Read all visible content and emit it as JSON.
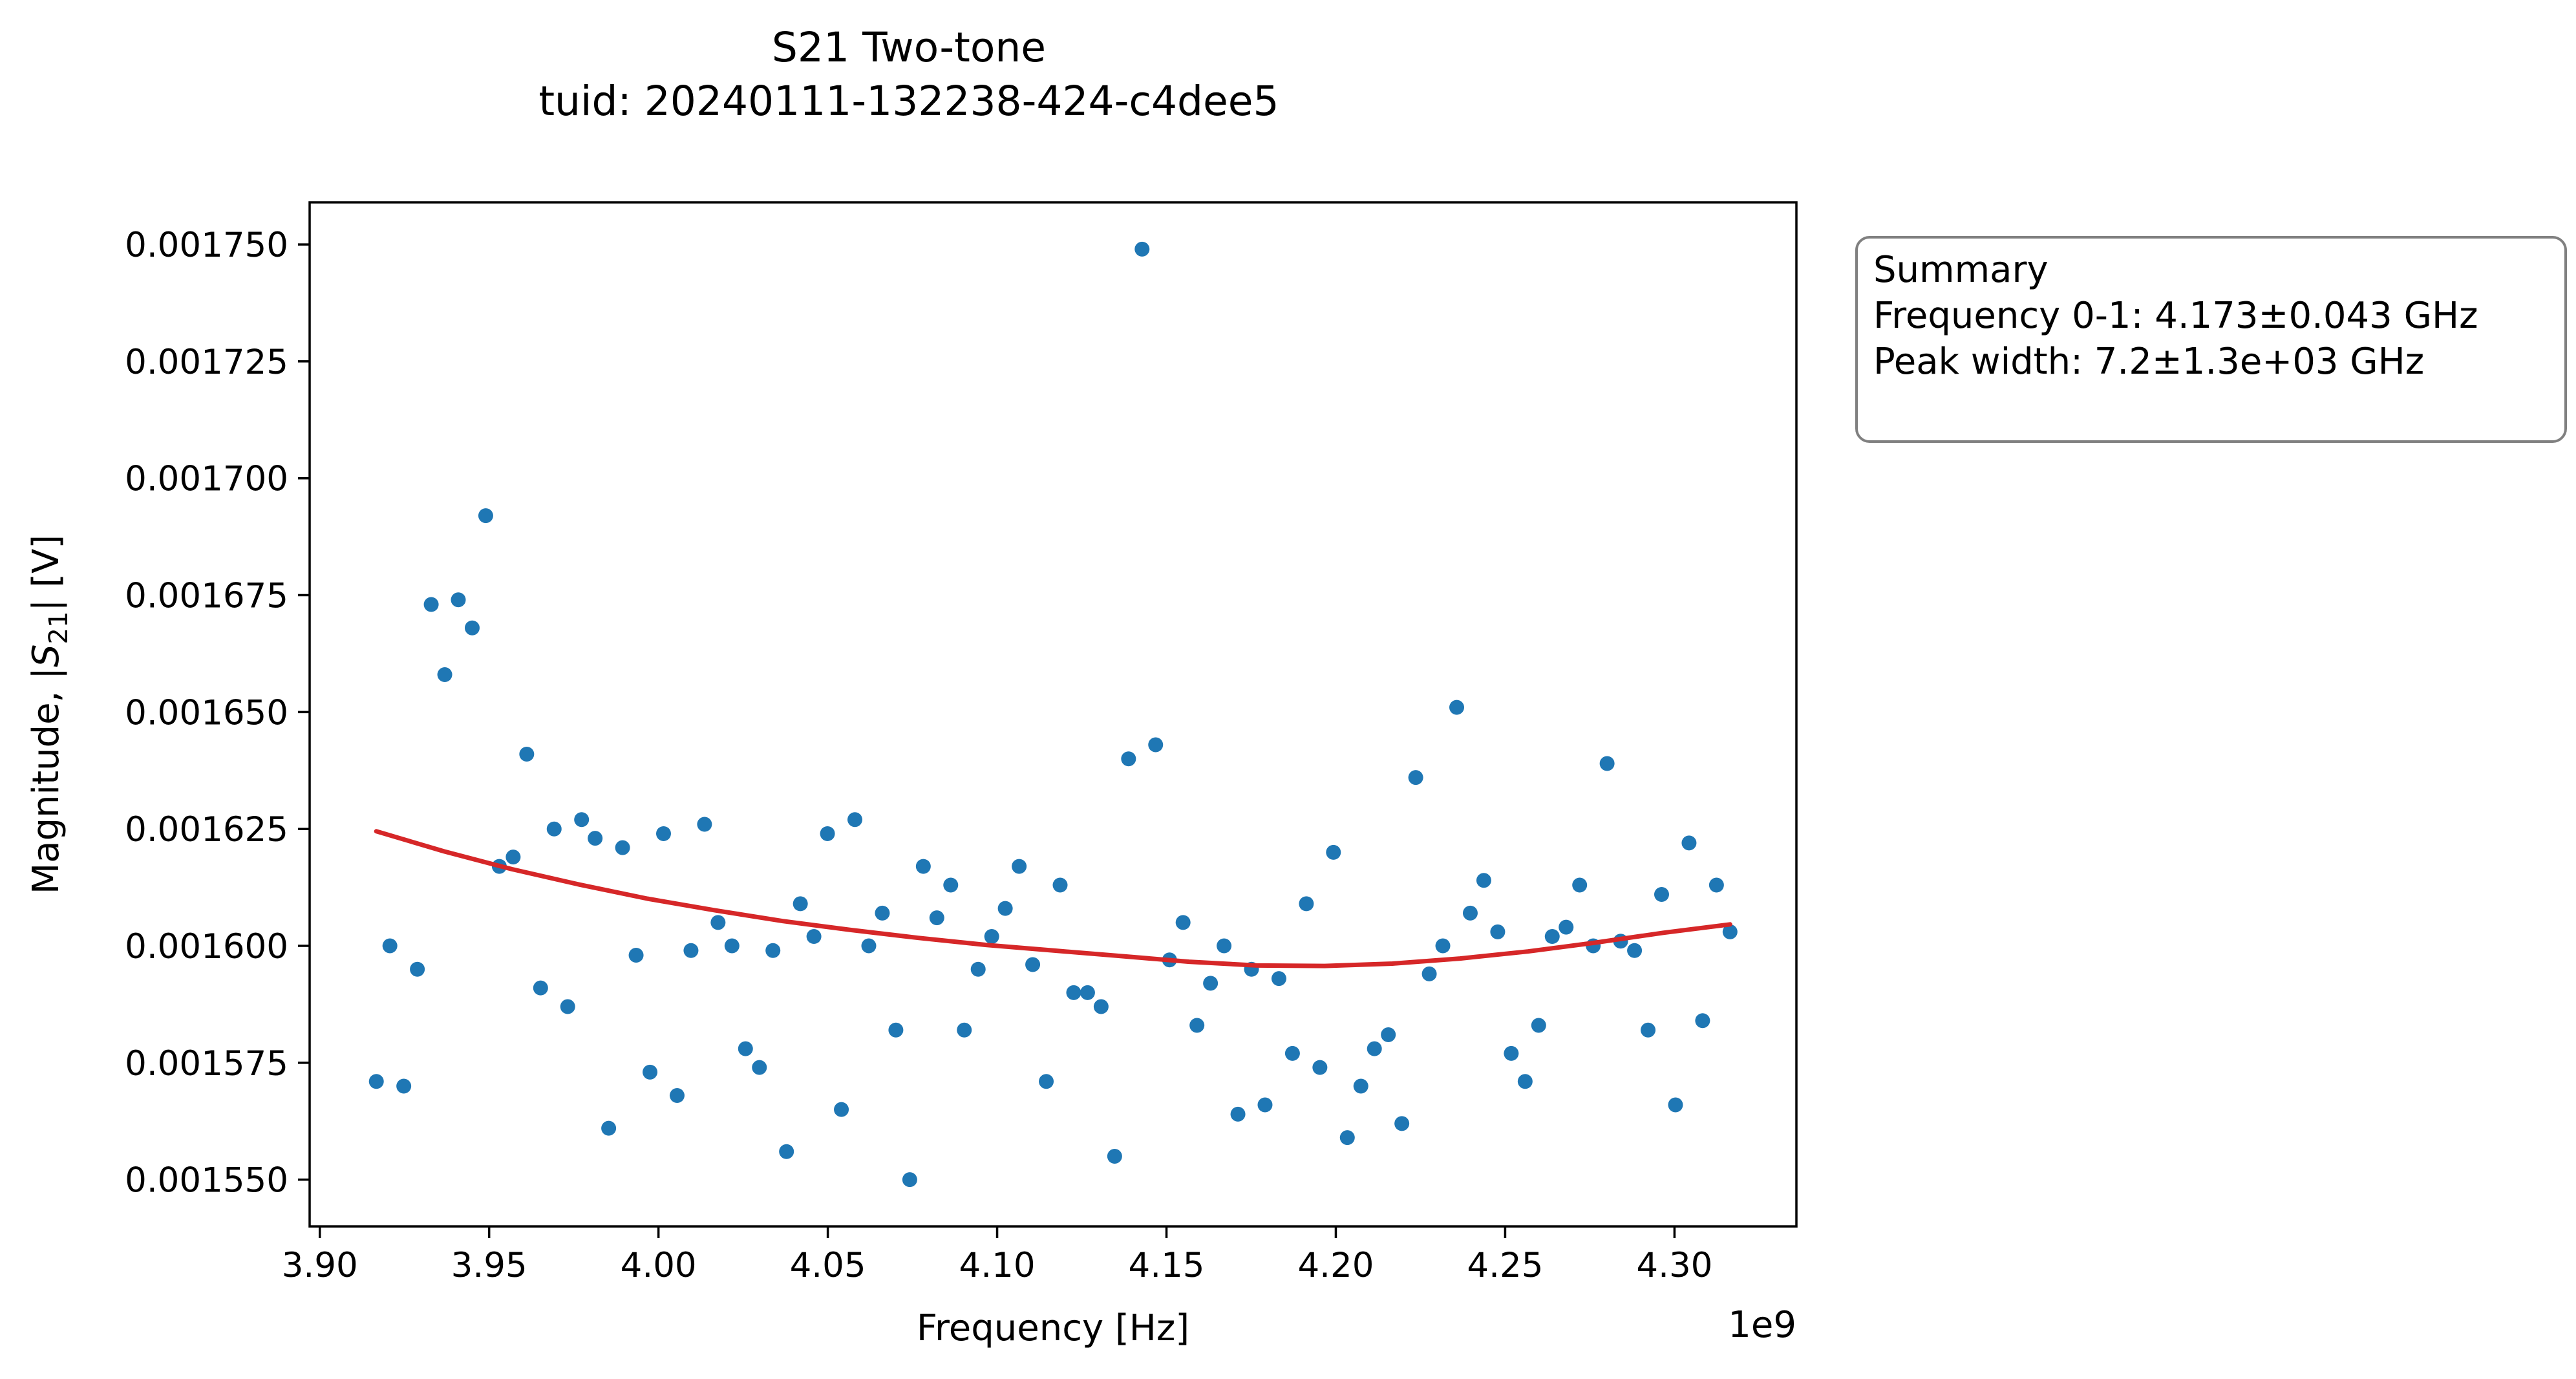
{
  "chart_data": {
    "type": "scatter",
    "title": "S21 Two-tone",
    "subtitle": "tuid: 20240111-132238-424-c4dee5",
    "xlabel": "Frequency [Hz]",
    "ylabel": "Magnitude, |S21| [V]",
    "x_offset_label": "1e9",
    "x_scale": 1000000000.0,
    "xlim": [
      3.897,
      4.336
    ],
    "ylim": [
      0.00154,
      0.001759
    ],
    "xticks": [
      3.9,
      3.95,
      4.0,
      4.05,
      4.1,
      4.15,
      4.2,
      4.25,
      4.3
    ],
    "xtick_labels": [
      "3.90",
      "3.95",
      "4.00",
      "4.05",
      "4.10",
      "4.15",
      "4.20",
      "4.25",
      "4.30"
    ],
    "yticks": [
      0.00155,
      0.001575,
      0.0016,
      0.001625,
      0.00165,
      0.001675,
      0.0017,
      0.001725,
      0.00175
    ],
    "ytick_labels": [
      "0.001550",
      "0.001575",
      "0.001600",
      "0.001625",
      "0.001650",
      "0.001675",
      "0.001700",
      "0.001725",
      "0.001750"
    ],
    "grid": false,
    "series": [
      {
        "marker": "dot",
        "color": "#1f77b4",
        "x": [
          3.9167,
          3.9207,
          3.9248,
          3.9288,
          3.9329,
          3.9369,
          3.9409,
          3.945,
          3.949,
          3.953,
          3.9571,
          3.9611,
          3.9652,
          3.9692,
          3.9732,
          3.9773,
          3.9813,
          3.9853,
          3.9894,
          3.9934,
          3.9975,
          4.0015,
          4.0055,
          4.0096,
          4.0136,
          4.0176,
          4.0217,
          4.0257,
          4.0298,
          4.0338,
          4.0378,
          4.0419,
          4.0459,
          4.0499,
          4.054,
          4.058,
          4.0621,
          4.0661,
          4.0701,
          4.0742,
          4.0782,
          4.0822,
          4.0863,
          4.0903,
          4.0944,
          4.0984,
          4.1024,
          4.1065,
          4.1105,
          4.1145,
          4.1186,
          4.1226,
          4.1267,
          4.1307,
          4.1347,
          4.1388,
          4.1428,
          4.1468,
          4.1509,
          4.1549,
          4.159,
          4.163,
          4.167,
          4.1711,
          4.1751,
          4.1791,
          4.1832,
          4.1872,
          4.1913,
          4.1953,
          4.1993,
          4.2034,
          4.2074,
          4.2114,
          4.2155,
          4.2195,
          4.2236,
          4.2276,
          4.2316,
          4.2357,
          4.2397,
          4.2437,
          4.2478,
          4.2518,
          4.2559,
          4.2599,
          4.2639,
          4.268,
          4.272,
          4.276,
          4.2801,
          4.2841,
          4.2882,
          4.2922,
          4.2962,
          4.3003,
          4.3043,
          4.3083,
          4.3124,
          4.3164
        ],
        "y": [
          0.001571,
          0.0016,
          0.00157,
          0.001595,
          0.001673,
          0.001658,
          0.001674,
          0.001668,
          0.001692,
          0.001617,
          0.001619,
          0.001641,
          0.001591,
          0.001625,
          0.001587,
          0.001627,
          0.001623,
          0.001561,
          0.001621,
          0.001598,
          0.001573,
          0.001624,
          0.001568,
          0.001599,
          0.001626,
          0.001605,
          0.0016,
          0.001578,
          0.001574,
          0.001599,
          0.001556,
          0.001609,
          0.001602,
          0.001624,
          0.001565,
          0.001627,
          0.0016,
          0.001607,
          0.001582,
          0.00155,
          0.001617,
          0.001606,
          0.001613,
          0.001582,
          0.001595,
          0.001602,
          0.001608,
          0.001617,
          0.001596,
          0.001571,
          0.001613,
          0.00159,
          0.00159,
          0.001587,
          0.001555,
          0.00164,
          0.001749,
          0.001643,
          0.001597,
          0.001605,
          0.001583,
          0.001592,
          0.0016,
          0.001564,
          0.001595,
          0.001566,
          0.001593,
          0.001577,
          0.001609,
          0.001574,
          0.00162,
          0.001559,
          0.00157,
          0.001578,
          0.001581,
          0.001562,
          0.001636,
          0.001594,
          0.0016,
          0.001651,
          0.001607,
          0.001614,
          0.001603,
          0.001577,
          0.001571,
          0.001583,
          0.001602,
          0.001604,
          0.001613,
          0.0016,
          0.001639,
          0.001601,
          0.001599,
          0.001582,
          0.001611,
          0.001566,
          0.001622,
          0.001584,
          0.001613,
          0.001603
        ]
      },
      {
        "type": "line",
        "color": "#d62728",
        "x": [
          3.9167,
          3.9367,
          3.9567,
          3.9767,
          3.9967,
          4.0167,
          4.0367,
          4.0567,
          4.0767,
          4.0967,
          4.1167,
          4.1367,
          4.1567,
          4.1767,
          4.1967,
          4.2167,
          4.2367,
          4.2567,
          4.2767,
          4.2967,
          4.3164
        ],
        "y": [
          0.0016245,
          0.0016202,
          0.0016164,
          0.0016131,
          0.0016101,
          0.0016076,
          0.0016053,
          0.0016034,
          0.0016017,
          0.0016002,
          0.001599,
          0.0015978,
          0.0015966,
          0.0015958,
          0.0015957,
          0.0015962,
          0.0015973,
          0.0015988,
          0.0016007,
          0.0016028,
          0.0016046
        ]
      }
    ]
  },
  "summary_box": {
    "heading": "Summary",
    "line1": "Frequency 0-1: 4.173±0.043 GHz",
    "line2": "Peak width: 7.2±1.3e+03 GHz"
  }
}
